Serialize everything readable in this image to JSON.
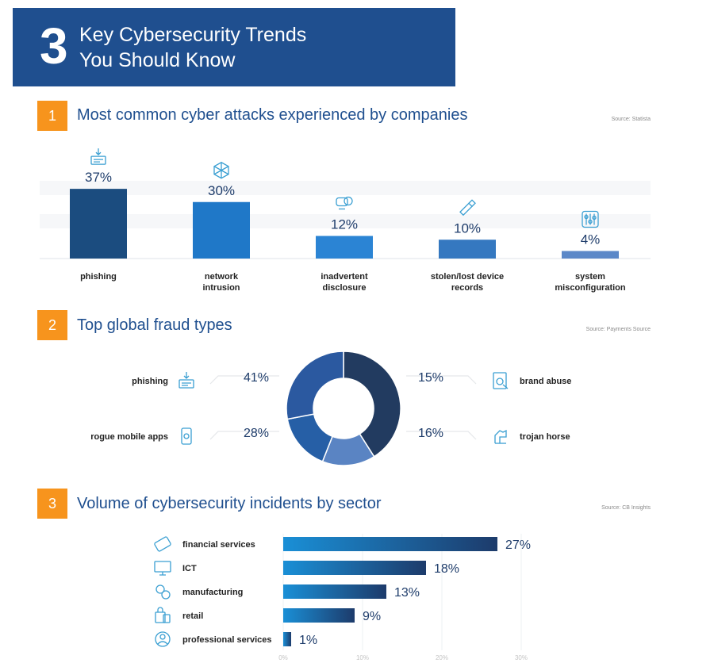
{
  "banner": {
    "number": "3",
    "title": "Key Cybersecurity Trends\nYou Should Know"
  },
  "sections": [
    {
      "number": "1",
      "title": "Most common cyber attacks experienced by companies",
      "source": "Source: Statista"
    },
    {
      "number": "2",
      "title": "Top global fraud types",
      "source": "Source: Payments Source"
    },
    {
      "number": "3",
      "title": "Volume of cybersecurity incidents by sector",
      "source": "Source: CB Insights"
    }
  ],
  "chart_data": [
    {
      "type": "bar",
      "categories": [
        "phishing",
        "network intrusion",
        "inadvertent disclosure",
        "stolen/lost device records",
        "system misconfiguration"
      ],
      "values": [
        37,
        30,
        12,
        10,
        4
      ],
      "value_labels": [
        "37%",
        "30%",
        "12%",
        "10%",
        "4%"
      ],
      "icons": [
        "phishing-icon",
        "network-intrusion-icon",
        "disclosure-chat-icon",
        "usb-drive-icon",
        "sliders-icon"
      ],
      "colors": [
        "#1b4c7f",
        "#1f78c8",
        "#2b84d4",
        "#3578c0",
        "#5b88c8"
      ],
      "ylim": [
        0,
        40
      ]
    },
    {
      "type": "pie",
      "labels": [
        "phishing",
        "brand abuse",
        "trojan horse",
        "rogue mobile apps"
      ],
      "values": [
        41,
        15,
        16,
        28
      ],
      "value_labels": [
        "41%",
        "15%",
        "16%",
        "28%"
      ],
      "colors": [
        "#223b60",
        "#5a84c3",
        "#265fa6",
        "#2b59a0"
      ],
      "icons": [
        "phishing-icon",
        "brand-abuse-icon",
        "trojan-horse-icon",
        "mobile-app-icon"
      ]
    },
    {
      "type": "bar",
      "orientation": "horizontal",
      "categories": [
        "financial services",
        "ICT",
        "manufacturing",
        "retail",
        "professional services"
      ],
      "values": [
        27,
        18,
        13,
        9,
        1
      ],
      "value_labels": [
        "27%",
        "18%",
        "13%",
        "9%",
        "1%"
      ],
      "icons": [
        "credit-card-icon",
        "computer-icon",
        "factory-gears-icon",
        "shopping-bags-icon",
        "professional-services-icon"
      ],
      "xticks": [
        "0%",
        "10%",
        "20%",
        "30%"
      ],
      "xlim": [
        0,
        30
      ],
      "bar_gradient": [
        "#1a8fd6",
        "#1d3b6b"
      ]
    }
  ]
}
